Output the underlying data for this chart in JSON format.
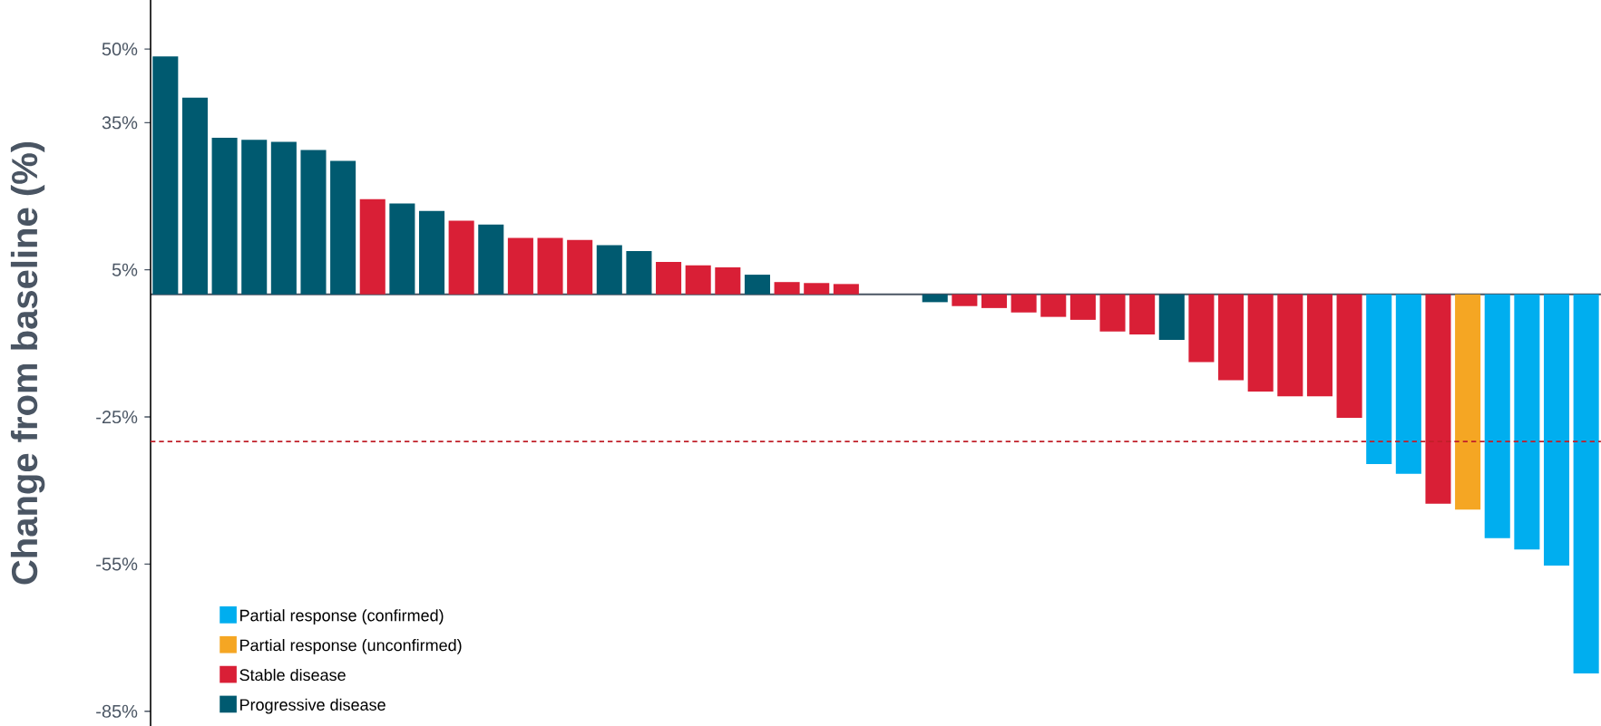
{
  "chart_data": {
    "type": "bar",
    "ylabel": "Change from baseline (%)",
    "categories": [
      null,
      null,
      null,
      null,
      null,
      null,
      null,
      null,
      null,
      null,
      null,
      null,
      null,
      null,
      null,
      null,
      null,
      null,
      null,
      null,
      null,
      null,
      null,
      null,
      null,
      null,
      null,
      null,
      null,
      null,
      null,
      null,
      null,
      null,
      null,
      null,
      null,
      null,
      null,
      null,
      null,
      null,
      null,
      null,
      null,
      null,
      null,
      null,
      null
    ],
    "series": [
      {
        "name": "Partial response (confirmed)",
        "color": "#00aeef",
        "values": [
          null,
          null,
          null,
          null,
          null,
          null,
          null,
          null,
          null,
          null,
          null,
          null,
          null,
          null,
          null,
          null,
          null,
          null,
          null,
          null,
          null,
          null,
          null,
          null,
          null,
          null,
          null,
          null,
          null,
          null,
          null,
          null,
          null,
          null,
          null,
          null,
          null,
          null,
          null,
          null,
          null,
          -34.6,
          -36.6,
          null,
          null,
          -49.7,
          -52,
          -55.3,
          -77.3
        ]
      },
      {
        "name": "Partial response (unconfirmed)",
        "color": "#f5a623",
        "values": [
          null,
          null,
          null,
          null,
          null,
          null,
          null,
          null,
          null,
          null,
          null,
          null,
          null,
          null,
          null,
          null,
          null,
          null,
          null,
          null,
          null,
          null,
          null,
          null,
          null,
          null,
          null,
          null,
          null,
          null,
          null,
          null,
          null,
          null,
          null,
          null,
          null,
          null,
          null,
          null,
          null,
          null,
          null,
          null,
          -43.9,
          null,
          null,
          null,
          null
        ]
      },
      {
        "name": "Stable disease",
        "color": "#d91f36",
        "values": [
          null,
          null,
          null,
          null,
          null,
          null,
          null,
          19.4,
          null,
          null,
          15.0,
          null,
          11.5,
          11.5,
          11.1,
          null,
          null,
          6.6,
          5.9,
          5.5,
          null,
          2.5,
          2.3,
          2.1,
          null,
          null,
          null,
          -2.4,
          -2.8,
          -3.7,
          -4.6,
          -5.2,
          -7.6,
          -8.2,
          null,
          -13.8,
          -17.5,
          -19.8,
          -20.8,
          -20.8,
          -25.2,
          null,
          null,
          -42.7,
          null,
          null,
          null,
          null,
          null
        ]
      },
      {
        "name": "Progressive disease",
        "color": "#005a70",
        "values": [
          48.5,
          40.1,
          31.9,
          31.5,
          31.1,
          29.4,
          27.2,
          null,
          18.5,
          17.0,
          null,
          14.2,
          null,
          null,
          null,
          10.0,
          8.8,
          null,
          null,
          null,
          4.0,
          null,
          null,
          null,
          null,
          null,
          -1.6,
          null,
          null,
          null,
          null,
          null,
          null,
          null,
          -9.3,
          null,
          null,
          null,
          null,
          null,
          null,
          null,
          null,
          null,
          null,
          null,
          null,
          null,
          null
        ]
      }
    ],
    "ylim": [
      -88,
      60
    ],
    "yticks": [
      {
        "value": 50,
        "label": "50%"
      },
      {
        "value": 35,
        "label": "35%"
      },
      {
        "value": 5,
        "label": "5%"
      },
      {
        "value": -25,
        "label": "-25%"
      },
      {
        "value": -55,
        "label": "-55%"
      },
      {
        "value": -85,
        "label": "-85%"
      }
    ],
    "ref_lines": [
      {
        "axis": "y",
        "value": -30,
        "color": "#c0202a",
        "line_style": "dashed"
      }
    ],
    "legend": "bottom left",
    "tick_labels": "y",
    "grid": false
  }
}
